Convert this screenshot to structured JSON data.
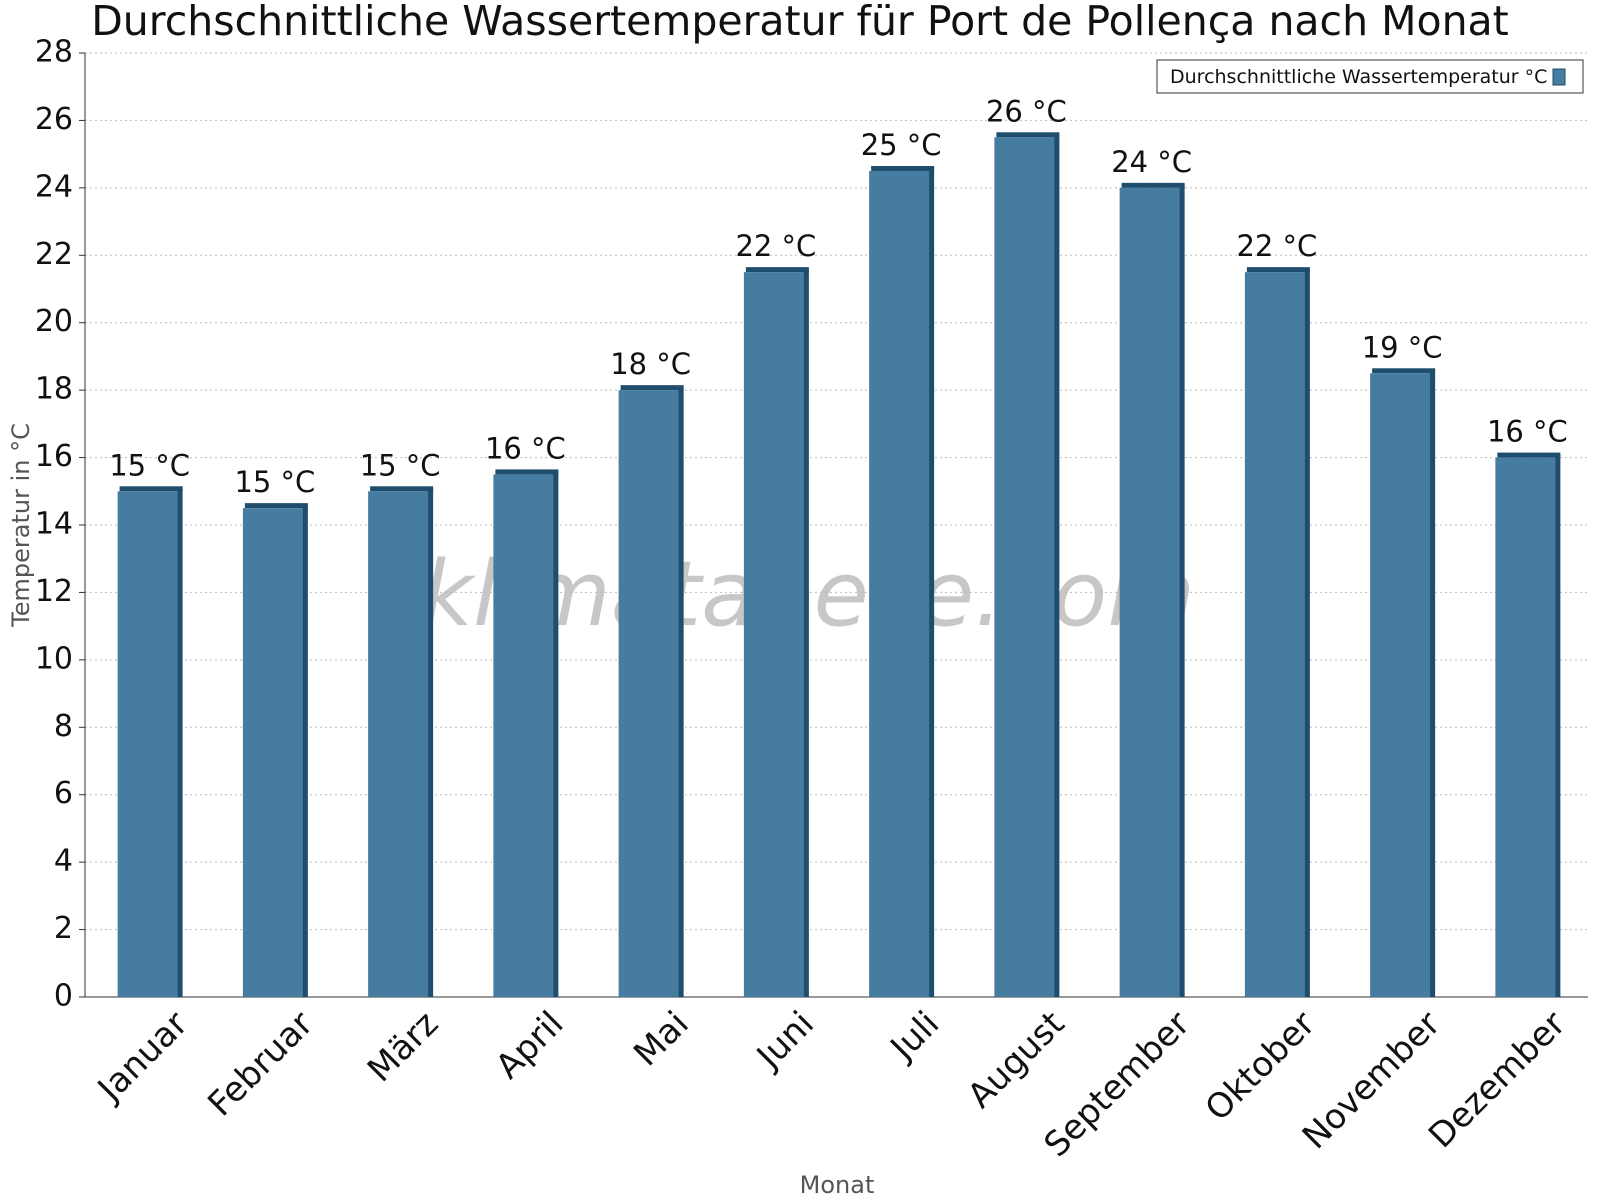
{
  "chart_data": {
    "type": "bar",
    "title": "Durchschnittliche Wassertemperatur für Port de Pollença nach Monat",
    "x_label": "Monat",
    "y_label": "Temperatur in °C",
    "watermark": "klimatabelle.com",
    "categories": [
      "Januar",
      "Februar",
      "März",
      "April",
      "Mai",
      "Juni",
      "Juli",
      "August",
      "September",
      "Oktober",
      "November",
      "Dezember"
    ],
    "series": [
      {
        "name": "Durchschnittliche Wassertemperatur °C",
        "color": "#467c9f",
        "values": [
          15,
          14.5,
          15,
          15.5,
          18,
          21.5,
          24.5,
          25.5,
          24,
          21.5,
          18.5,
          16
        ],
        "value_labels": [
          "15 °C",
          "15 °C",
          "15 °C",
          "16 °C",
          "18 °C",
          "22 °C",
          "25 °C",
          "26 °C",
          "24 °C",
          "22 °C",
          "19 °C",
          "16 °C"
        ]
      }
    ],
    "ylim": [
      0,
      28
    ],
    "yticks": [
      0,
      2,
      4,
      6,
      8,
      10,
      12,
      14,
      16,
      18,
      20,
      22,
      24,
      26,
      28
    ],
    "grid": true,
    "legend": "top-right"
  }
}
